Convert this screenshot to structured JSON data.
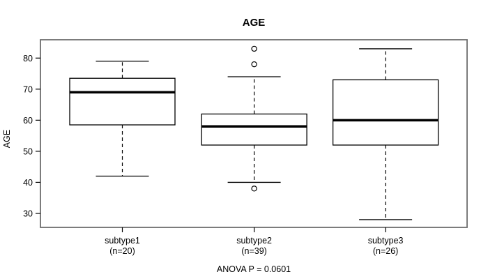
{
  "chart_data": {
    "type": "boxplot",
    "title": "AGE",
    "ylabel": "AGE",
    "xlabel": "",
    "annotation": "ANOVA P = 0.0601",
    "ylim": [
      25.5,
      85.9
    ],
    "yticks": [
      30,
      40,
      50,
      60,
      70,
      80
    ],
    "grid": false,
    "legend": null,
    "categories": [
      {
        "label": "subtype1",
        "n": 20,
        "n_label": "(n=20)"
      },
      {
        "label": "subtype2",
        "n": 39,
        "n_label": "(n=39)"
      },
      {
        "label": "subtype3",
        "n": 26,
        "n_label": "(n=26)"
      }
    ],
    "series": [
      {
        "name": "subtype1",
        "whisker_low": 42,
        "q1": 58.5,
        "median": 69,
        "q3": 73.5,
        "whisker_high": 79,
        "outliers": []
      },
      {
        "name": "subtype2",
        "whisker_low": 40,
        "q1": 52,
        "median": 58,
        "q3": 62,
        "whisker_high": 74,
        "outliers": [
          83,
          78,
          38
        ]
      },
      {
        "name": "subtype3",
        "whisker_low": 28,
        "q1": 52,
        "median": 60,
        "q3": 73,
        "whisker_high": 83,
        "outliers": []
      }
    ]
  },
  "colors": {
    "line": "#000000",
    "frame": "#6e6e6e",
    "box_fill": "#ffffff",
    "background": "#ffffff"
  }
}
